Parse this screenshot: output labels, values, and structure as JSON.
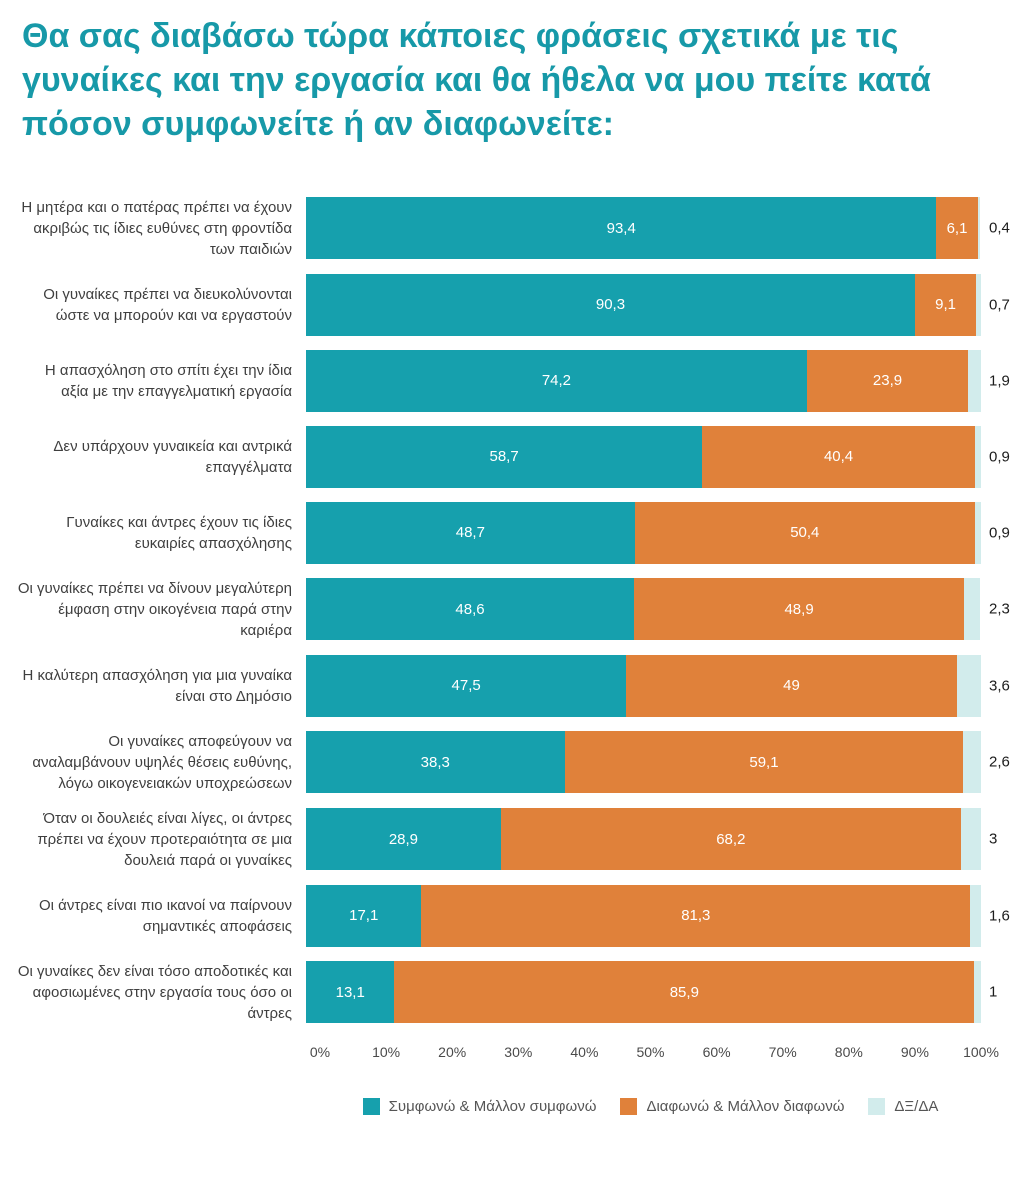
{
  "chart_data": {
    "type": "bar",
    "orientation": "horizontal",
    "stacked": true,
    "title": "Θα σας διαβάσω τώρα κάποιες φράσεις σχετικά με τις γυναίκες και την εργασία και θα ήθελα να μου πείτε κατά πόσον συμφωνείτε ή αν διαφωνείτε:",
    "title_color": "#1799a8",
    "categories": [
      "Η μητέρα και ο πατέρας πρέπει να έχουν ακριβώς τις ίδιες ευθύνες στη φροντίδα των παιδιών",
      "Οι γυναίκες πρέπει να διευκολύνονται ώστε να μπορούν και να εργαστούν",
      "Η απασχόληση στο σπίτι έχει την ίδια αξία με την επαγγελματική εργασία",
      "Δεν υπάρχουν γυναικεία και αντρικά επαγγέλματα",
      "Γυναίκες και άντρες έχουν τις ίδιες ευκαιρίες απασχόλησης",
      "Οι γυναίκες πρέπει να δίνουν μεγαλύτερη έμφαση στην οικογένεια παρά στην καριέρα",
      "Η καλύτερη απασχόληση για μια γυναίκα είναι στο Δημόσιο",
      "Οι γυναίκες αποφεύγουν να αναλαμβάνουν υψηλές θέσεις ευθύνης, λόγω οικογενειακών υποχρεώσεων",
      "Όταν οι δουλειές είναι λίγες, οι άντρες πρέπει να έχουν προτεραιότητα σε μια δουλειά παρά οι γυναίκες",
      "Οι άντρες είναι πιο ικανοί να παίρνουν σημαντικές αποφάσεις",
      "Οι γυναίκες δεν είναι τόσο αποδοτικές και αφοσιωμένες στην εργασία τους όσο οι άντρες"
    ],
    "series": [
      {
        "key": "agree",
        "name": "Συμφωνώ & Μάλλον συμφωνώ",
        "color": "#16a0ad",
        "values": [
          93.4,
          90.3,
          74.2,
          58.7,
          48.7,
          48.6,
          47.5,
          38.3,
          28.9,
          17.1,
          13.1
        ],
        "labels": [
          "93,4",
          "90,3",
          "74,2",
          "58,7",
          "48,7",
          "48,6",
          "47,5",
          "38,3",
          "28,9",
          "17,1",
          "13,1"
        ]
      },
      {
        "key": "disagree",
        "name": "Διαφωνώ & Μάλλον διαφωνώ",
        "color": "#e0813a",
        "values": [
          6.1,
          9.1,
          23.9,
          40.4,
          50.4,
          48.9,
          49,
          59.1,
          68.2,
          81.3,
          85.9
        ],
        "labels": [
          "6,1",
          "9,1",
          "23,9",
          "40,4",
          "50,4",
          "48,9",
          "49",
          "59,1",
          "68,2",
          "81,3",
          "85,9"
        ]
      },
      {
        "key": "dk",
        "name": "ΔΞ/ΔΑ",
        "color": "#d2ecec",
        "values": [
          0.4,
          0.7,
          1.9,
          0.9,
          0.9,
          2.3,
          3.6,
          2.6,
          3,
          1.6,
          1
        ],
        "labels": [
          "0,4",
          "0,7",
          "1,9",
          "0,9",
          "0,9",
          "2,3",
          "3,6",
          "2,6",
          "3",
          "1,6",
          "1"
        ]
      }
    ],
    "xlim": [
      0,
      100
    ],
    "x_ticks": [
      "0%",
      "10%",
      "20%",
      "30%",
      "40%",
      "50%",
      "60%",
      "70%",
      "80%",
      "90%",
      "100%"
    ],
    "legend_position": "bottom"
  }
}
